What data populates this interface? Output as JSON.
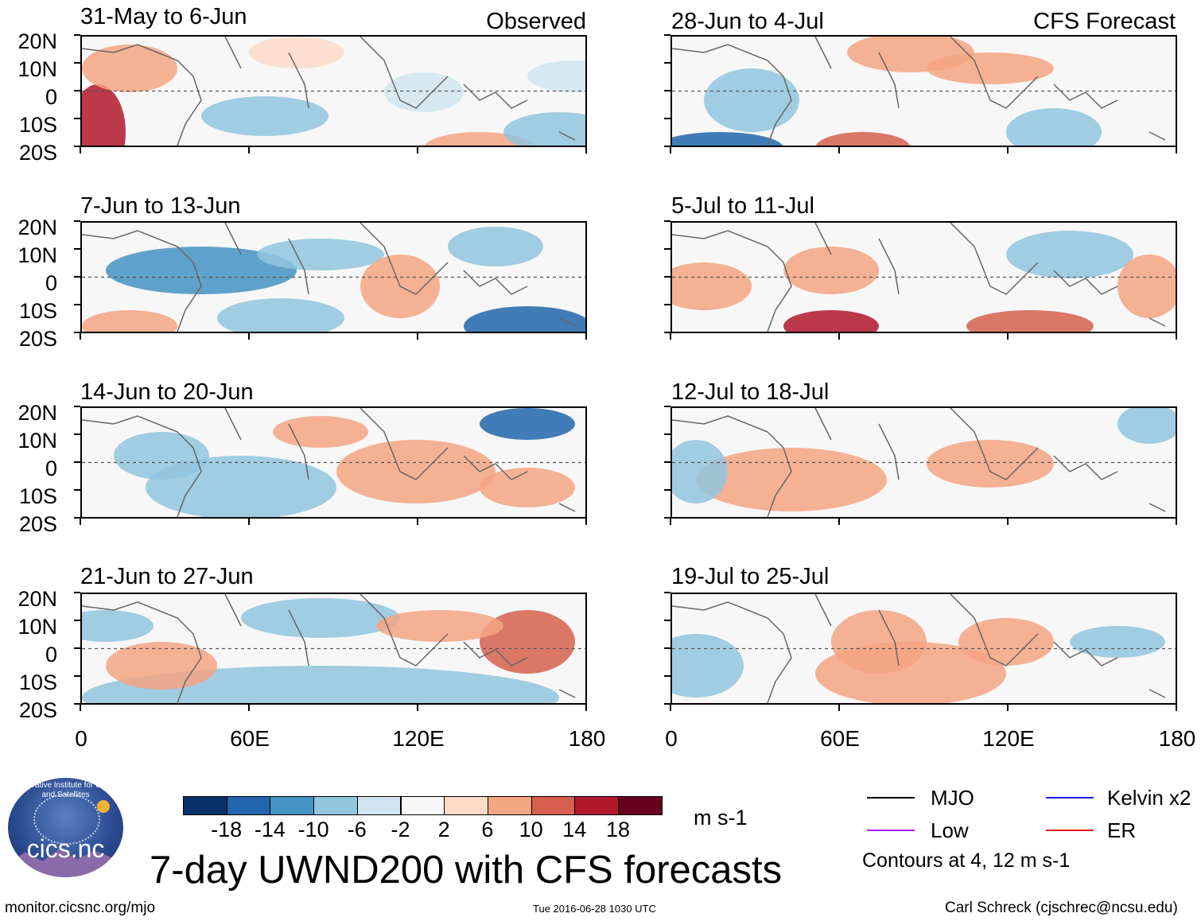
{
  "panels": [
    {
      "title": "31-May to 6-Jun",
      "label": "Observed"
    },
    {
      "title": "7-Jun to 13-Jun",
      "label": ""
    },
    {
      "title": "14-Jun to 20-Jun",
      "label": ""
    },
    {
      "title": "21-Jun to 27-Jun",
      "label": ""
    },
    {
      "title": "28-Jun to 4-Jul",
      "label": "CFS Forecast"
    },
    {
      "title": "5-Jul to 11-Jul",
      "label": ""
    },
    {
      "title": "12-Jul to 18-Jul",
      "label": ""
    },
    {
      "title": "19-Jul to 25-Jul",
      "label": ""
    }
  ],
  "yaxis": [
    "20N",
    "10N",
    "0",
    "10S",
    "20S"
  ],
  "xaxis": [
    "0",
    "60E",
    "120E",
    "180"
  ],
  "colorbar": {
    "labels": [
      "-18",
      "-14",
      "-10",
      "-6",
      "-2",
      "2",
      "6",
      "10",
      "14",
      "18"
    ],
    "colors": [
      "#08306b",
      "#2166ac",
      "#4393c3",
      "#92c5de",
      "#d1e5f0",
      "#f7f7f7",
      "#fddbc7",
      "#f4a582",
      "#d6604d",
      "#b2182b",
      "#67001f"
    ],
    "units": "m s-1"
  },
  "legend": {
    "items": [
      {
        "label": "MJO",
        "color": "#000000"
      },
      {
        "label": "Kelvin x2",
        "color": "#1a1adc"
      },
      {
        "label": "Low",
        "color": "#a020f0"
      },
      {
        "label": "ER",
        "color": "#e01010"
      }
    ],
    "note": "Contours at 4, 12 m s-1"
  },
  "title": "7-day UWND200 with CFS forecasts",
  "footer": {
    "url": "monitor.cicsnc.org/mjo",
    "timestamp": "Tue 2016-06-28 1030 UTC",
    "credit": "Carl Schreck (cjschrec@ncsu.edu)"
  },
  "logo": {
    "text": "cics.nc",
    "arc": "Cooperative Institute for Climate and Satellites"
  }
}
